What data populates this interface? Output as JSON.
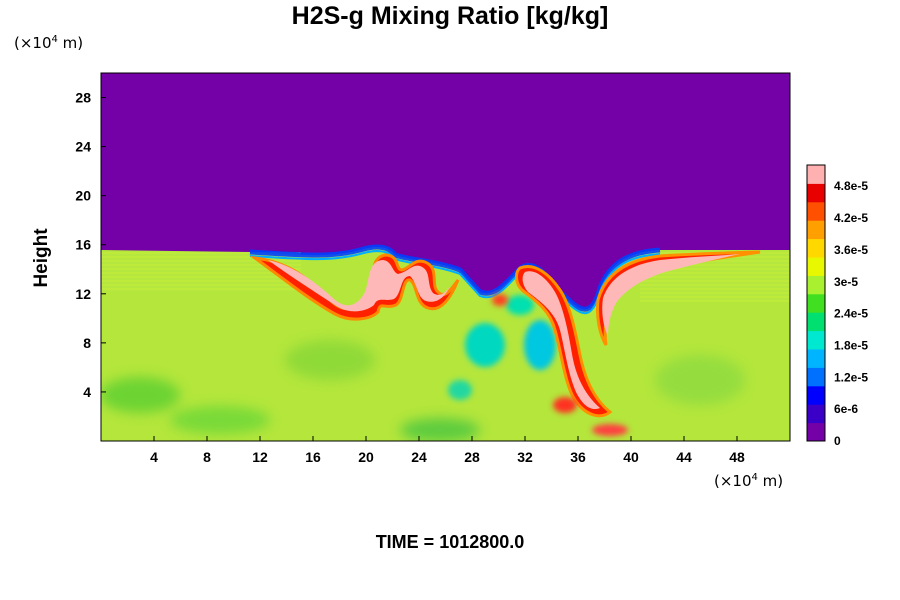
{
  "chart_data": {
    "type": "heatmap",
    "title": "H2S-g Mixing Ratio [kg/kg]",
    "xlabel": "",
    "ylabel": "Height",
    "x_unit_prefix": "(×10",
    "x_unit_exp": "4",
    "x_unit_suffix": " m)",
    "y_unit_prefix": "(×10",
    "y_unit_exp": "4",
    "y_unit_suffix": " m)",
    "xlim": [
      0,
      52
    ],
    "ylim": [
      0,
      30
    ],
    "x_ticks": [
      "4",
      "8",
      "12",
      "16",
      "20",
      "24",
      "28",
      "32",
      "36",
      "40",
      "44",
      "48"
    ],
    "y_ticks": [
      "4",
      "8",
      "12",
      "16",
      "20",
      "24",
      "28"
    ],
    "colorbar": {
      "range": [
        0,
        5.2e-05
      ],
      "ticks": [
        "0",
        "6e-6",
        "1.2e-5",
        "1.8e-5",
        "2.4e-5",
        "3e-5",
        "3.6e-5",
        "4.2e-5",
        "4.8e-5"
      ],
      "colors": [
        "#7400a8",
        "#3a00c8",
        "#0000ff",
        "#0070ff",
        "#00b4ff",
        "#00e8d0",
        "#00e070",
        "#40e020",
        "#a8f030",
        "#e8f800",
        "#ffd800",
        "#ffa000",
        "#ff5000",
        "#e80000",
        "#ffb0b0"
      ]
    },
    "regions": [
      {
        "name": "upper",
        "approx_value": 0,
        "y_range": [
          15.3,
          30
        ]
      },
      {
        "name": "lower",
        "approx_value": 3.1e-05,
        "y_range": [
          0,
          15.3
        ]
      },
      {
        "name": "plume-max",
        "approx_value": 5e-05
      }
    ],
    "footer": "TIME = 1012800.0"
  }
}
